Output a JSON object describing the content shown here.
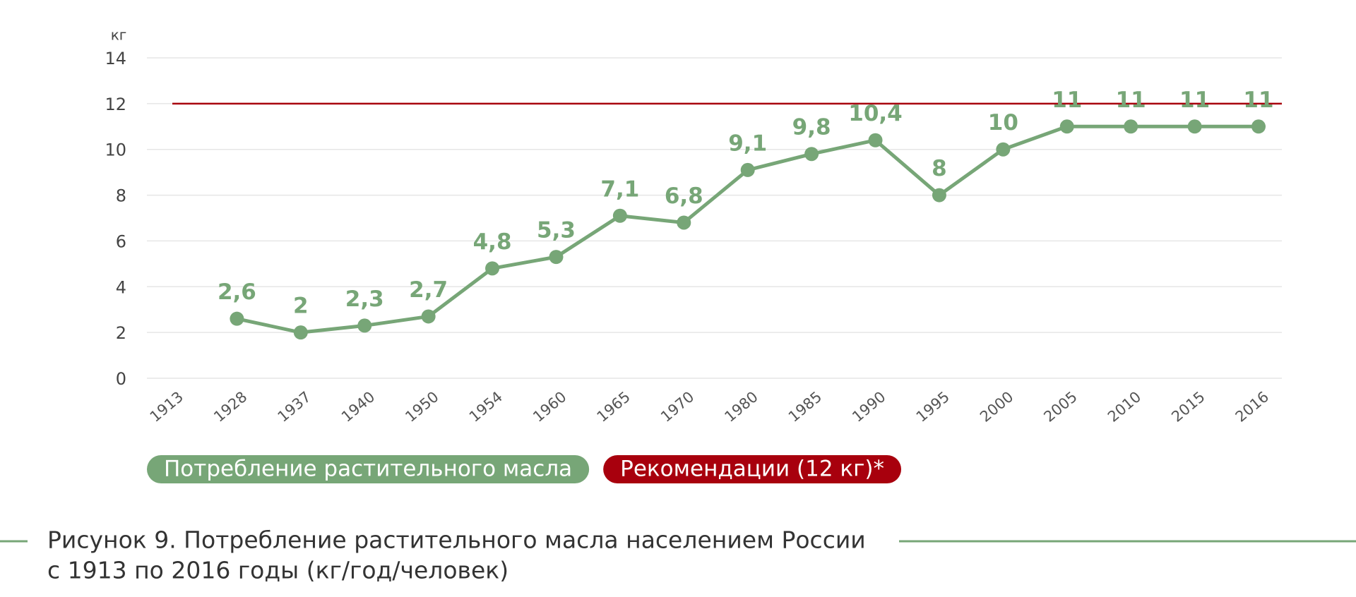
{
  "chart_data": {
    "type": "line",
    "y_label": "кг",
    "categories": [
      "1913",
      "1928",
      "1937",
      "1940",
      "1950",
      "1954",
      "1960",
      "1965",
      "1970",
      "1980",
      "1985",
      "1990",
      "1995",
      "2000",
      "2005",
      "2010",
      "2015",
      "2016"
    ],
    "series": [
      {
        "name": "Потребление растительного масла",
        "color": "#77a677",
        "values": [
          null,
          2.6,
          2,
          2.3,
          2.7,
          4.8,
          5.3,
          7.1,
          6.8,
          9.1,
          9.8,
          10.4,
          8,
          10,
          11,
          11,
          11,
          11
        ],
        "value_labels": [
          null,
          "2,6",
          "2",
          "2,3",
          "2,7",
          "4,8",
          "5,3",
          "7,1",
          "6,8",
          "9,1",
          "9,8",
          "10,4",
          "8",
          "10",
          "11",
          "11",
          "11",
          "11"
        ]
      }
    ],
    "reference_line": {
      "name": "Рекомендации (12 кг)*",
      "value": 12,
      "color": "#a8000d"
    },
    "ylim": [
      0,
      14
    ],
    "yticks": [
      0,
      2,
      4,
      6,
      8,
      10,
      12,
      14
    ],
    "grid": true,
    "caption": [
      "Рисунок 9. Потребление растительного масла населением России",
      "с 1913 по 2016 годы (кг/год/человек)"
    ]
  }
}
